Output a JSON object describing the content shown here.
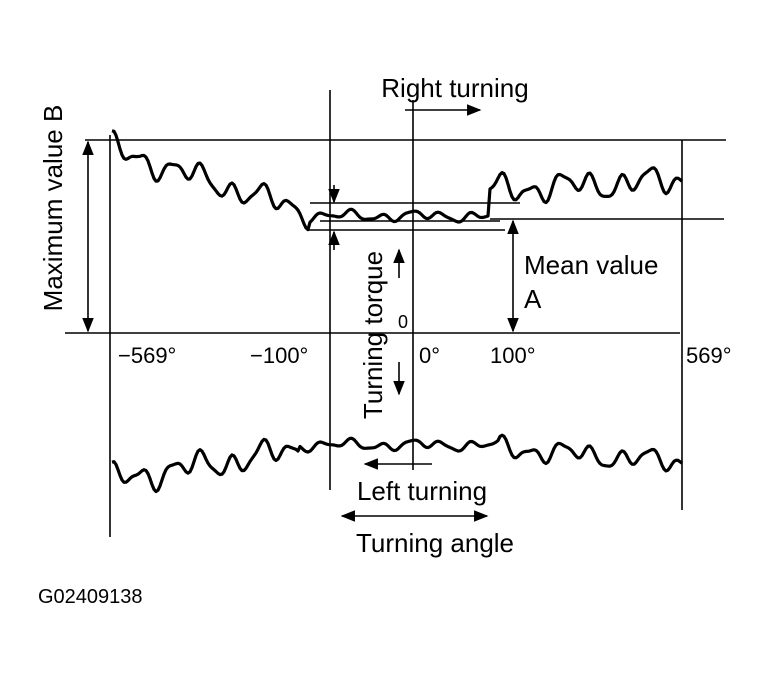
{
  "labels": {
    "right_turning": "Right turning",
    "maximum_value": "Maximum value B",
    "mean_value": "Mean value",
    "mean_value_letter": "A",
    "turning_torque": "Turning torque",
    "zero": "0",
    "angle_neg_569": "−569°",
    "angle_neg_100": "−100°",
    "angle_0": "0°",
    "angle_100": "100°",
    "angle_569": "569°",
    "left_turning": "Left turning",
    "turning_angle": "Turning angle",
    "figure_id": "G02409138"
  }
}
